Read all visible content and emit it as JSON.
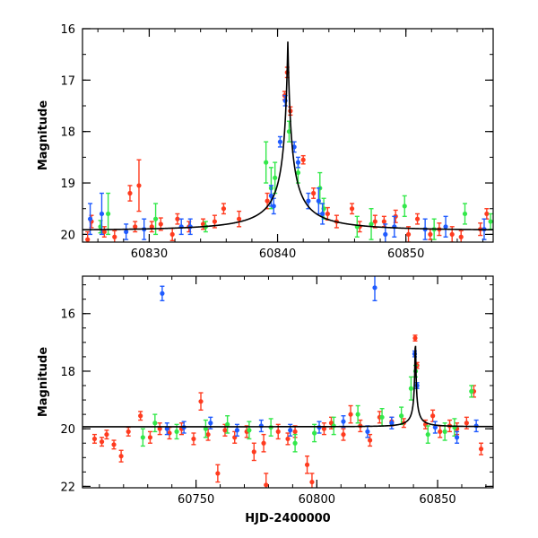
{
  "chart_data": [
    {
      "type": "scatter",
      "panel": "top",
      "ylabel": "Magnitude",
      "xlim": [
        60824.8,
        60856.8
      ],
      "ylim": [
        20.15,
        16.0
      ],
      "y_inverted": true,
      "xticks": [
        "60830",
        "60840",
        "60850"
      ],
      "yticks": [
        "16",
        "17",
        "18",
        "19",
        "20"
      ],
      "xtick_values": [
        60830,
        60840,
        60850
      ],
      "ytick_values": [
        16,
        17,
        18,
        19,
        20
      ],
      "model_curve": {
        "color": "#000000",
        "peak_time": 60840.8,
        "peak_mag": 16.25,
        "baseline_mag": 19.93,
        "width": 0.55
      },
      "series": [
        {
          "color": "#ff3b1f",
          "points": [
            [
              60825.2,
              20.1,
              0.15
            ],
            [
              60825.5,
              19.75,
              0.12
            ],
            [
              60826.5,
              19.95,
              0.1
            ],
            [
              60827.3,
              20.05,
              0.12
            ],
            [
              60828.5,
              19.2,
              0.15
            ],
            [
              60828.9,
              19.85,
              0.1
            ],
            [
              60829.2,
              19.05,
              0.5
            ],
            [
              60830.2,
              19.85,
              0.1
            ],
            [
              60830.9,
              19.8,
              0.12
            ],
            [
              60831.8,
              20.0,
              0.12
            ],
            [
              60832.2,
              19.7,
              0.1
            ],
            [
              60833.1,
              19.85,
              0.1
            ],
            [
              60834.2,
              19.8,
              0.1
            ],
            [
              60835.1,
              19.75,
              0.12
            ],
            [
              60835.8,
              19.5,
              0.1
            ],
            [
              60837.0,
              19.7,
              0.15
            ],
            [
              60839.2,
              19.35,
              0.15
            ],
            [
              60840.55,
              17.3,
              0.08
            ],
            [
              60840.75,
              16.85,
              0.1
            ],
            [
              60841.0,
              17.6,
              0.08
            ],
            [
              60842.0,
              18.55,
              0.08
            ],
            [
              60842.8,
              19.2,
              0.1
            ],
            [
              60843.9,
              19.6,
              0.12
            ],
            [
              60844.6,
              19.75,
              0.12
            ],
            [
              60845.8,
              19.5,
              0.1
            ],
            [
              60846.4,
              19.85,
              0.1
            ],
            [
              60847.6,
              19.75,
              0.12
            ],
            [
              60848.3,
              19.75,
              0.1
            ],
            [
              60849.2,
              19.65,
              0.12
            ],
            [
              60850.2,
              20.0,
              0.15
            ],
            [
              60850.9,
              19.7,
              0.1
            ],
            [
              60851.9,
              20.0,
              0.1
            ],
            [
              60852.6,
              19.9,
              0.12
            ],
            [
              60853.6,
              20.0,
              0.15
            ],
            [
              60854.3,
              20.05,
              0.12
            ],
            [
              60855.8,
              19.9,
              0.12
            ],
            [
              60856.3,
              19.6,
              0.1
            ]
          ]
        },
        {
          "color": "#33e84a",
          "points": [
            [
              60826.2,
              19.85,
              0.12
            ],
            [
              60826.8,
              19.6,
              0.4
            ],
            [
              60830.5,
              19.7,
              0.3
            ],
            [
              60834.4,
              19.85,
              0.1
            ],
            [
              60839.1,
              18.6,
              0.4
            ],
            [
              60839.5,
              19.1,
              0.4
            ],
            [
              60839.8,
              18.9,
              0.3
            ],
            [
              60840.9,
              18.0,
              0.2
            ],
            [
              60841.6,
              18.8,
              0.2
            ],
            [
              60843.3,
              19.1,
              0.3
            ],
            [
              60843.6,
              19.5,
              0.2
            ],
            [
              60846.2,
              19.85,
              0.2
            ],
            [
              60847.3,
              19.8,
              0.3
            ],
            [
              60849.9,
              19.45,
              0.2
            ],
            [
              60852.2,
              19.9,
              0.2
            ],
            [
              60854.6,
              19.6,
              0.2
            ],
            [
              60856.6,
              19.75,
              0.15
            ]
          ]
        },
        {
          "color": "#1f5bff",
          "points": [
            [
              60825.4,
              19.7,
              0.3
            ],
            [
              60826.3,
              19.6,
              0.4
            ],
            [
              60828.2,
              19.95,
              0.15
            ],
            [
              60829.6,
              19.9,
              0.2
            ],
            [
              60832.5,
              19.85,
              0.15
            ],
            [
              60833.2,
              19.85,
              0.15
            ],
            [
              60839.5,
              19.25,
              0.2
            ],
            [
              60839.7,
              19.45,
              0.15
            ],
            [
              60840.2,
              18.2,
              0.1
            ],
            [
              60840.6,
              17.4,
              0.1
            ],
            [
              60841.3,
              18.3,
              0.1
            ],
            [
              60841.6,
              18.6,
              0.1
            ],
            [
              60842.4,
              19.35,
              0.15
            ],
            [
              60843.2,
              19.35,
              0.25
            ],
            [
              60843.5,
              19.6,
              0.2
            ],
            [
              60848.4,
              20.0,
              0.2
            ],
            [
              60849.1,
              19.85,
              0.2
            ],
            [
              60851.5,
              19.9,
              0.2
            ],
            [
              60853.1,
              19.85,
              0.2
            ],
            [
              60856.1,
              19.9,
              0.2
            ]
          ]
        }
      ]
    },
    {
      "type": "scatter",
      "panel": "bottom",
      "xlabel": "HJD-2400000",
      "ylabel": "Magnitude",
      "xlim": [
        60703,
        60873
      ],
      "ylim": [
        22.05,
        14.7
      ],
      "y_inverted": true,
      "xticks": [
        "60750",
        "60800",
        "60850"
      ],
      "yticks": [
        "16",
        "18",
        "20",
        "22"
      ],
      "xtick_values": [
        60750,
        60800,
        60850
      ],
      "ytick_values": [
        16,
        18,
        20,
        22
      ],
      "model_curve": {
        "color": "#000000",
        "peak_time": 60840.8,
        "peak_mag": 16.25,
        "baseline_mag": 19.93,
        "width": 0.55
      },
      "series": [
        {
          "color": "#ff3b1f",
          "points": [
            [
              60708,
              20.35,
              0.15
            ],
            [
              60711,
              20.45,
              0.15
            ],
            [
              60713,
              20.2,
              0.15
            ],
            [
              60716,
              20.55,
              0.15
            ],
            [
              60719,
              20.95,
              0.2
            ],
            [
              60722,
              20.1,
              0.15
            ],
            [
              60727,
              19.55,
              0.15
            ],
            [
              60731,
              20.3,
              0.2
            ],
            [
              60735,
              20.0,
              0.2
            ],
            [
              60739,
              20.15,
              0.2
            ],
            [
              60744,
              20.0,
              0.2
            ],
            [
              60749,
              20.35,
              0.2
            ],
            [
              60752,
              19.05,
              0.3
            ],
            [
              60755,
              20.2,
              0.2
            ],
            [
              60759,
              21.55,
              0.3
            ],
            [
              60762,
              20.05,
              0.2
            ],
            [
              60766,
              20.3,
              0.2
            ],
            [
              60771,
              20.1,
              0.2
            ],
            [
              60774,
              20.8,
              0.3
            ],
            [
              60778,
              20.5,
              0.3
            ],
            [
              60779,
              21.95,
              0.4
            ],
            [
              60784,
              20.1,
              0.25
            ],
            [
              60788,
              20.35,
              0.2
            ],
            [
              60791,
              20.1,
              0.2
            ],
            [
              60796,
              21.25,
              0.3
            ],
            [
              60798,
              21.85,
              0.3
            ],
            [
              60803,
              20.0,
              0.2
            ],
            [
              60806,
              19.8,
              0.2
            ],
            [
              60811,
              20.2,
              0.2
            ],
            [
              60814,
              19.5,
              0.3
            ],
            [
              60818,
              19.9,
              0.2
            ],
            [
              60822,
              20.4,
              0.2
            ],
            [
              60826,
              19.6,
              0.2
            ],
            [
              60831,
              19.75,
              0.15
            ],
            [
              60836,
              19.8,
              0.15
            ],
            [
              60840.7,
              16.85,
              0.1
            ],
            [
              60841.5,
              17.8,
              0.1
            ],
            [
              60845,
              19.85,
              0.15
            ],
            [
              60848,
              19.55,
              0.2
            ],
            [
              60851,
              20.1,
              0.2
            ],
            [
              60855,
              19.9,
              0.2
            ],
            [
              60858,
              20.0,
              0.2
            ],
            [
              60862,
              19.8,
              0.2
            ],
            [
              60865,
              18.7,
              0.2
            ],
            [
              60868,
              20.7,
              0.2
            ]
          ]
        },
        {
          "color": "#33e84a",
          "points": [
            [
              60728,
              20.3,
              0.3
            ],
            [
              60733,
              19.8,
              0.3
            ],
            [
              60742,
              20.1,
              0.25
            ],
            [
              60754,
              20.0,
              0.3
            ],
            [
              60763,
              19.85,
              0.3
            ],
            [
              60772,
              20.05,
              0.3
            ],
            [
              60781,
              19.95,
              0.3
            ],
            [
              60791,
              20.5,
              0.3
            ],
            [
              60799,
              20.15,
              0.3
            ],
            [
              60807,
              19.9,
              0.3
            ],
            [
              60817,
              19.5,
              0.3
            ],
            [
              60827,
              19.6,
              0.3
            ],
            [
              60835,
              19.55,
              0.3
            ],
            [
              60839,
              18.6,
              0.4
            ],
            [
              60840.9,
              18.0,
              0.2
            ],
            [
              60846,
              20.2,
              0.3
            ],
            [
              60853,
              20.1,
              0.3
            ],
            [
              60857,
              19.95,
              0.3
            ],
            [
              60864,
              18.7,
              0.2
            ]
          ]
        },
        {
          "color": "#1f5bff",
          "points": [
            [
              60736,
              15.3,
              0.25
            ],
            [
              60824,
              15.1,
              0.45
            ],
            [
              60738,
              20.0,
              0.2
            ],
            [
              60745,
              19.95,
              0.2
            ],
            [
              60756,
              19.8,
              0.2
            ],
            [
              60767,
              20.05,
              0.2
            ],
            [
              60777,
              19.9,
              0.2
            ],
            [
              60789,
              20.05,
              0.2
            ],
            [
              60801,
              19.95,
              0.2
            ],
            [
              60811,
              19.75,
              0.2
            ],
            [
              60821,
              20.1,
              0.2
            ],
            [
              60831,
              19.8,
              0.2
            ],
            [
              60840.5,
              17.4,
              0.1
            ],
            [
              60841.5,
              18.5,
              0.1
            ],
            [
              60849,
              19.95,
              0.2
            ],
            [
              60858,
              20.3,
              0.2
            ],
            [
              60866,
              19.9,
              0.2
            ]
          ]
        }
      ]
    }
  ]
}
